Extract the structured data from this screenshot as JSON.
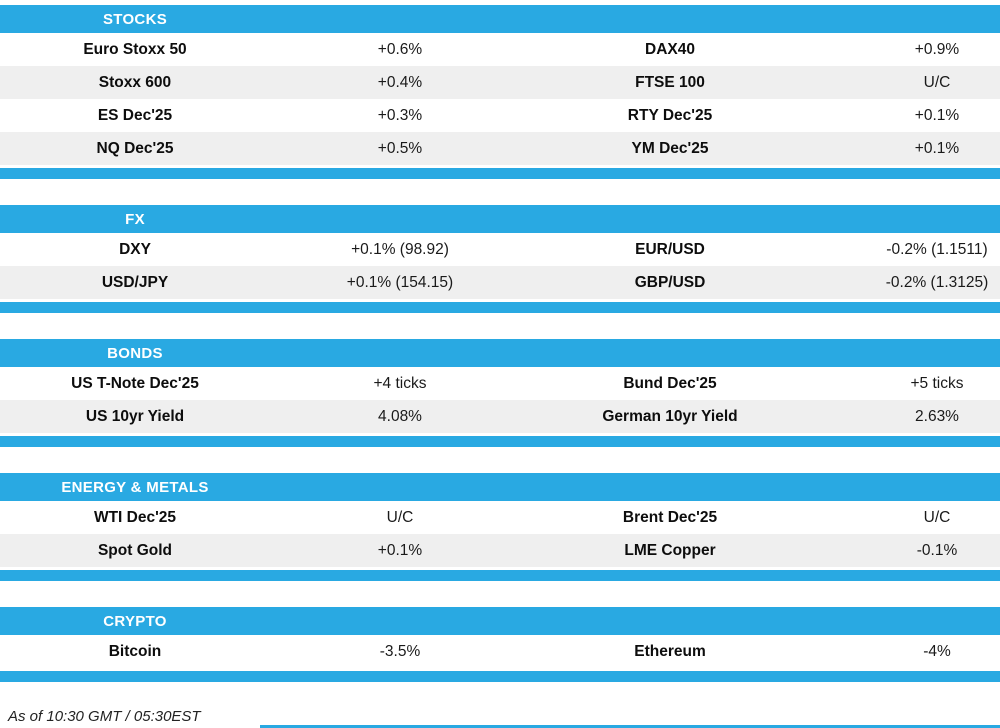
{
  "accent_color": "#29a9e2",
  "row_alt_color": "#efefef",
  "sections": [
    {
      "title": "STOCKS",
      "rows": [
        {
          "name1": "Euro Stoxx 50",
          "val1": "+0.6%",
          "name2": "DAX40",
          "val2": "+0.9%"
        },
        {
          "name1": "Stoxx 600",
          "val1": "+0.4%",
          "name2": "FTSE 100",
          "val2": "U/C"
        },
        {
          "name1": "ES Dec'25",
          "val1": "+0.3%",
          "name2": "RTY Dec'25",
          "val2": "+0.1%"
        },
        {
          "name1": "NQ Dec'25",
          "val1": "+0.5%",
          "name2": "YM Dec'25",
          "val2": "+0.1%"
        }
      ]
    },
    {
      "title": "FX",
      "rows": [
        {
          "name1": "DXY",
          "val1": "+0.1% (98.92)",
          "name2": "EUR/USD",
          "val2": "-0.2% (1.1511)"
        },
        {
          "name1": "USD/JPY",
          "val1": "+0.1% (154.15)",
          "name2": "GBP/USD",
          "val2": "-0.2% (1.3125)"
        }
      ]
    },
    {
      "title": "BONDS",
      "rows": [
        {
          "name1": "US T-Note Dec'25",
          "val1": "+4 ticks",
          "name2": "Bund Dec'25",
          "val2": "+5 ticks"
        },
        {
          "name1": "US 10yr Yield",
          "val1": "4.08%",
          "name2": "German 10yr Yield",
          "val2": "2.63%"
        }
      ]
    },
    {
      "title": "ENERGY & METALS",
      "rows": [
        {
          "name1": "WTI Dec'25",
          "val1": "U/C",
          "name2": "Brent Dec'25",
          "val2": "U/C"
        },
        {
          "name1": "Spot Gold",
          "val1": "+0.1%",
          "name2": "LME Copper",
          "val2": "-0.1%"
        }
      ]
    },
    {
      "title": "CRYPTO",
      "rows": [
        {
          "name1": "Bitcoin",
          "val1": "-3.5%",
          "name2": "Ethereum",
          "val2": "-4%"
        }
      ]
    }
  ],
  "footer": {
    "timestamp": "As of 10:30 GMT / 05:30EST"
  }
}
